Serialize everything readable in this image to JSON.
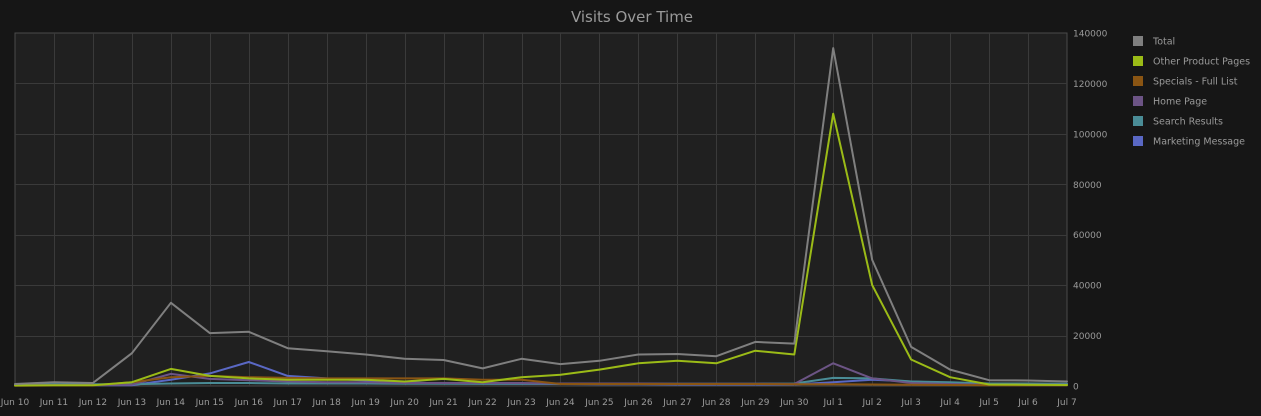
{
  "chart_data": {
    "type": "line",
    "title": "Visits Over Time",
    "xlabel": "",
    "ylabel": "",
    "ylim": [
      0,
      140000
    ],
    "yticks": [
      0,
      20000,
      40000,
      60000,
      80000,
      100000,
      120000,
      140000
    ],
    "y_axis_position": "right",
    "grid": true,
    "legend_position": "right",
    "categories": [
      "Jun 10",
      "Jun 11",
      "Jun 12",
      "Jun 13",
      "Jun 14",
      "Jun 15",
      "Jun 16",
      "Jun 17",
      "Jun 18",
      "Jun 19",
      "Jun 20",
      "Jun 21",
      "Jun 22",
      "Jun 23",
      "Jun 24",
      "Jun 25",
      "Jun 26",
      "Jun 27",
      "Jun 28",
      "Jun 29",
      "Jun 30",
      "Jul 1",
      "Jul 2",
      "Jul 3",
      "Jul 4",
      "Jul 5",
      "Jul 6",
      "Jul 7"
    ],
    "series": [
      {
        "name": "Total",
        "color": "#7f7f7f",
        "values": [
          800,
          1500,
          1200,
          13000,
          33000,
          21000,
          21500,
          15000,
          13800,
          12500,
          10800,
          10300,
          7000,
          10800,
          8700,
          10000,
          12500,
          12700,
          11800,
          17500,
          16800,
          134000,
          50000,
          15500,
          6500,
          2300,
          2200,
          1800
        ]
      },
      {
        "name": "Other Product Pages",
        "color": "#9bbb17",
        "values": [
          200,
          300,
          300,
          1500,
          6800,
          4000,
          3000,
          2500,
          2500,
          2500,
          1800,
          2800,
          1500,
          3500,
          4500,
          6500,
          9000,
          10000,
          9000,
          14000,
          12500,
          108000,
          40000,
          10500,
          3500,
          600,
          500,
          400
        ]
      },
      {
        "name": "Specials - Full List",
        "color": "#8a5513",
        "values": [
          100,
          200,
          200,
          1500,
          3500,
          4000,
          3500,
          3200,
          3000,
          3000,
          3000,
          3000,
          2500,
          2500,
          800,
          800,
          800,
          800,
          800,
          800,
          700,
          700,
          600,
          500,
          400,
          300,
          300,
          300
        ]
      },
      {
        "name": "Home Page",
        "color": "#6c5485",
        "values": [
          300,
          400,
          400,
          500,
          4800,
          2800,
          2300,
          1800,
          1500,
          1500,
          1200,
          1200,
          1200,
          1200,
          1000,
          1000,
          1000,
          900,
          900,
          900,
          800,
          9000,
          3000,
          1200,
          800,
          500,
          500,
          500
        ]
      },
      {
        "name": "Search Results",
        "color": "#4a8c96",
        "values": [
          500,
          700,
          700,
          700,
          1000,
          1200,
          1200,
          1000,
          1000,
          1000,
          900,
          900,
          900,
          900,
          900,
          900,
          900,
          900,
          900,
          900,
          1000,
          3200,
          3000,
          1800,
          1500,
          1000,
          1000,
          900
        ]
      },
      {
        "name": "Marketing Message",
        "color": "#5a68c4",
        "values": [
          300,
          300,
          300,
          300,
          2500,
          5000,
          9500,
          4000,
          3000,
          2200,
          1500,
          1000,
          900,
          900,
          800,
          700,
          700,
          600,
          600,
          600,
          600,
          1500,
          2500,
          1800,
          1200,
          800,
          700,
          700
        ]
      }
    ]
  }
}
